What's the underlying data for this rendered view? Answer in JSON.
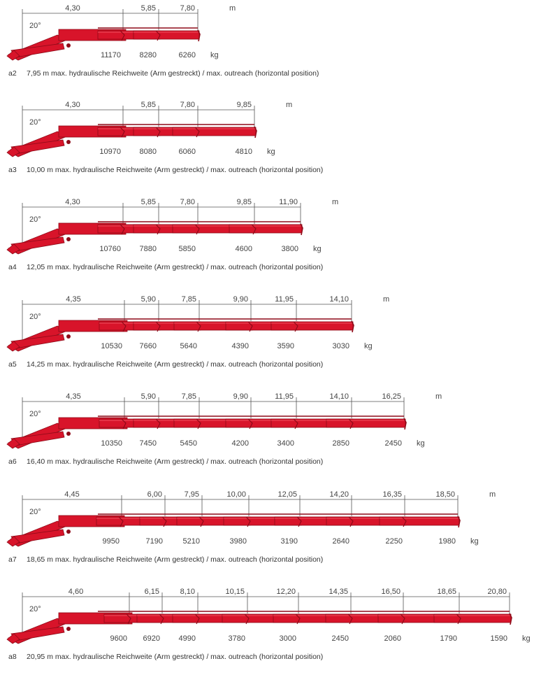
{
  "configurations": [
    {
      "code": "a2",
      "caption": "7,95 m max. hydraulische Reichweite (Arm gestreckt) / max. outreach (horizontal position)",
      "angle_label": "20°",
      "unit_m": "m",
      "unit_kg": "kg",
      "reach_m": [
        "4,30",
        "5,85",
        "7,80"
      ],
      "load_kg": [
        "11170",
        "8280",
        "6260"
      ]
    },
    {
      "code": "a3",
      "caption": "10,00 m max. hydraulische Reichweite (Arm gestreckt) / max. outreach (horizontal position)",
      "angle_label": "20°",
      "unit_m": "m",
      "unit_kg": "kg",
      "reach_m": [
        "4,30",
        "5,85",
        "7,80",
        "9,85"
      ],
      "load_kg": [
        "10970",
        "8080",
        "6060",
        "4810"
      ]
    },
    {
      "code": "a4",
      "caption": "12,05 m max. hydraulische Reichweite (Arm gestreckt) / max. outreach (horizontal position)",
      "angle_label": "20°",
      "unit_m": "m",
      "unit_kg": "kg",
      "reach_m": [
        "4,30",
        "5,85",
        "7,80",
        "9,85",
        "11,90"
      ],
      "load_kg": [
        "10760",
        "7880",
        "5850",
        "4600",
        "3800"
      ]
    },
    {
      "code": "a5",
      "caption": "14,25 m max. hydraulische Reichweite (Arm gestreckt) / max. outreach (horizontal position)",
      "angle_label": "20°",
      "unit_m": "m",
      "unit_kg": "kg",
      "reach_m": [
        "4,35",
        "5,90",
        "7,85",
        "9,90",
        "11,95",
        "14,10"
      ],
      "load_kg": [
        "10530",
        "7660",
        "5640",
        "4390",
        "3590",
        "3030"
      ]
    },
    {
      "code": "a6",
      "caption": "16,40 m max. hydraulische Reichweite (Arm gestreckt) / max. outreach (horizontal position)",
      "angle_label": "20°",
      "unit_m": "m",
      "unit_kg": "kg",
      "reach_m": [
        "4,35",
        "5,90",
        "7,85",
        "9,90",
        "11,95",
        "14,10",
        "16,25"
      ],
      "load_kg": [
        "10350",
        "7450",
        "5450",
        "4200",
        "3400",
        "2850",
        "2450"
      ]
    },
    {
      "code": "a7",
      "caption": "18,65 m max. hydraulische Reichweite (Arm gestreckt) / max. outreach (horizontal position)",
      "angle_label": "20°",
      "unit_m": "m",
      "unit_kg": "kg",
      "reach_m": [
        "4,45",
        "6,00",
        "7,95",
        "10,00",
        "12,05",
        "14,20",
        "16,35",
        "18,50"
      ],
      "load_kg": [
        "9950",
        "7190",
        "5210",
        "3980",
        "3190",
        "2640",
        "2250",
        "1980"
      ]
    },
    {
      "code": "a8",
      "caption": "20,95 m max. hydraulische Reichweite (Arm gestreckt) / max. outreach (horizontal position)",
      "angle_label": "20°",
      "unit_m": "m",
      "unit_kg": "kg",
      "reach_m": [
        "4,60",
        "6,15",
        "8,10",
        "10,15",
        "12,20",
        "14,35",
        "16,50",
        "18,65",
        "20,80"
      ],
      "load_kg": [
        "9600",
        "6920",
        "4990",
        "3780",
        "3000",
        "2450",
        "2060",
        "1790",
        "1590"
      ]
    }
  ],
  "colors": {
    "boom": "#d8142a",
    "boom_dark": "#8e0a18",
    "boom_light": "#f05060",
    "dimension_line": "#555555",
    "text": "#333333"
  }
}
